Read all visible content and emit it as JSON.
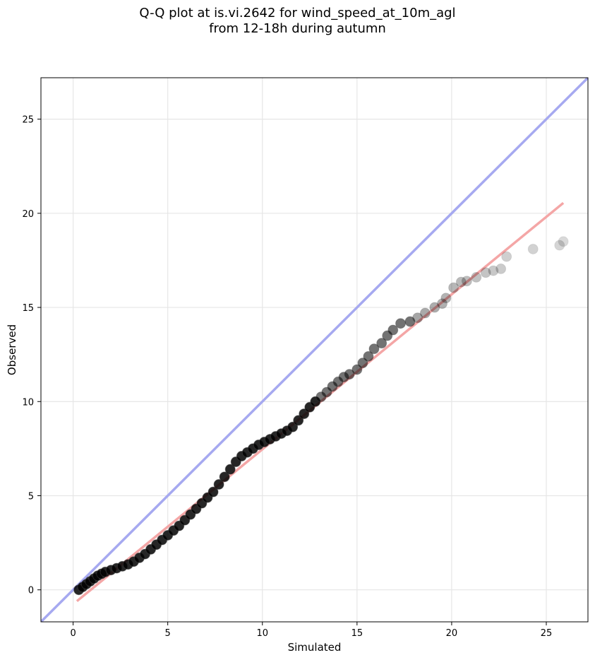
{
  "chart_data": {
    "type": "scatter",
    "title_line1": "Q-Q plot at is.vi.2642 for wind_speed_at_10m_agl",
    "title_line2": "from 12-18h during autumn",
    "xlabel": "Simulated",
    "ylabel": "Observed",
    "xlim": [
      -1.7,
      27.2
    ],
    "ylim": [
      -1.7,
      27.2
    ],
    "xticks": [
      0,
      5,
      10,
      15,
      20,
      25
    ],
    "yticks": [
      0,
      5,
      10,
      15,
      20,
      25
    ],
    "grid": true,
    "reference_line": {
      "color": "#a6a9f0",
      "description": "1:1 line",
      "x": [
        -1.7,
        27.2
      ],
      "y": [
        -1.7,
        27.2
      ]
    },
    "fit_line": {
      "color": "#f4a6a6",
      "x": [
        0.2,
        25.9
      ],
      "y": [
        -0.6,
        20.55
      ]
    },
    "points_color": "#000000",
    "points": [
      [
        0.3,
        0.0
      ],
      [
        0.5,
        0.15
      ],
      [
        0.7,
        0.3
      ],
      [
        0.9,
        0.45
      ],
      [
        1.1,
        0.6
      ],
      [
        1.3,
        0.75
      ],
      [
        1.5,
        0.85
      ],
      [
        1.7,
        0.95
      ],
      [
        2.0,
        1.05
      ],
      [
        2.3,
        1.15
      ],
      [
        2.6,
        1.25
      ],
      [
        2.9,
        1.35
      ],
      [
        3.2,
        1.5
      ],
      [
        3.5,
        1.7
      ],
      [
        3.8,
        1.9
      ],
      [
        4.1,
        2.15
      ],
      [
        4.4,
        2.4
      ],
      [
        4.7,
        2.65
      ],
      [
        5.0,
        2.9
      ],
      [
        5.3,
        3.15
      ],
      [
        5.6,
        3.4
      ],
      [
        5.9,
        3.7
      ],
      [
        6.2,
        4.0
      ],
      [
        6.5,
        4.3
      ],
      [
        6.8,
        4.6
      ],
      [
        7.1,
        4.9
      ],
      [
        7.4,
        5.2
      ],
      [
        7.7,
        5.6
      ],
      [
        8.0,
        6.0
      ],
      [
        8.3,
        6.4
      ],
      [
        8.6,
        6.8
      ],
      [
        8.9,
        7.1
      ],
      [
        9.2,
        7.3
      ],
      [
        9.5,
        7.5
      ],
      [
        9.8,
        7.7
      ],
      [
        10.1,
        7.85
      ],
      [
        10.4,
        8.0
      ],
      [
        10.7,
        8.15
      ],
      [
        11.0,
        8.3
      ],
      [
        11.3,
        8.45
      ],
      [
        11.6,
        8.65
      ],
      [
        11.9,
        9.0
      ],
      [
        12.2,
        9.35
      ],
      [
        12.5,
        9.7
      ],
      [
        12.8,
        10.0
      ],
      [
        13.1,
        10.25
      ],
      [
        13.4,
        10.5
      ],
      [
        13.7,
        10.8
      ],
      [
        14.0,
        11.05
      ],
      [
        14.3,
        11.3
      ],
      [
        14.6,
        11.45
      ],
      [
        15.0,
        11.7
      ],
      [
        15.3,
        12.05
      ],
      [
        15.6,
        12.4
      ],
      [
        15.9,
        12.8
      ],
      [
        16.3,
        13.1
      ],
      [
        16.6,
        13.5
      ],
      [
        16.9,
        13.8
      ],
      [
        17.3,
        14.15
      ],
      [
        17.8,
        14.25
      ],
      [
        18.2,
        14.45
      ],
      [
        18.6,
        14.7
      ],
      [
        19.1,
        15.0
      ],
      [
        19.5,
        15.2
      ],
      [
        19.7,
        15.5
      ],
      [
        20.1,
        16.05
      ],
      [
        20.5,
        16.35
      ],
      [
        20.8,
        16.4
      ],
      [
        21.3,
        16.6
      ],
      [
        21.8,
        16.85
      ],
      [
        22.2,
        16.95
      ],
      [
        22.6,
        17.05
      ],
      [
        22.9,
        17.7
      ],
      [
        24.3,
        18.1
      ],
      [
        25.7,
        18.3
      ],
      [
        25.9,
        18.5
      ]
    ]
  }
}
